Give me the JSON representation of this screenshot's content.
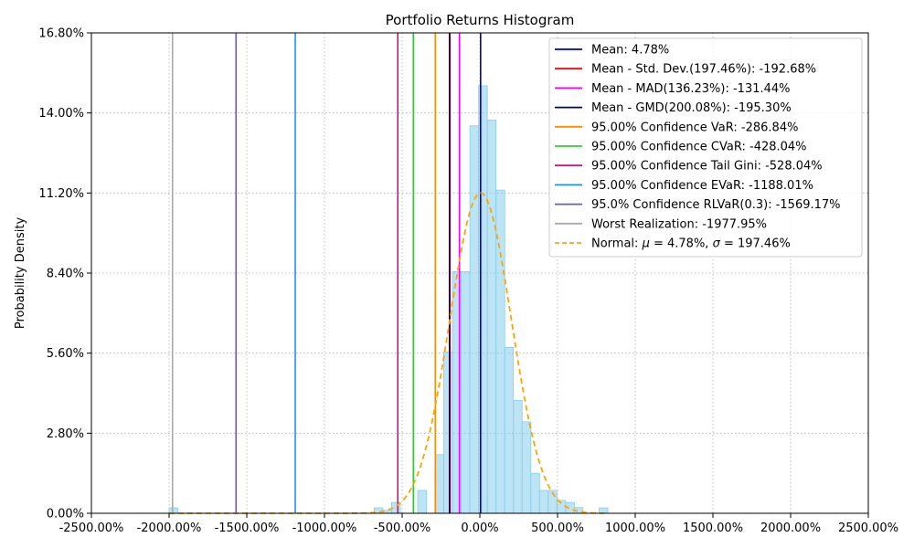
{
  "chart_data": {
    "type": "bar",
    "title": "Portfolio Returns Histogram",
    "xlabel": "",
    "ylabel": "Probability Density",
    "xlim": [
      -2500,
      2500
    ],
    "ylim": [
      0,
      16.8
    ],
    "grid": true,
    "x_ticks": [
      -2500,
      -2000,
      -1500,
      -1000,
      -500,
      0,
      500,
      1000,
      1500,
      2000,
      2500
    ],
    "x_tick_labels": [
      "-2500.00%",
      "-2000.00%",
      "-1500.00%",
      "-1000.00%",
      "-500.00%",
      "0.00%",
      "500.00%",
      "1000.00%",
      "1500.00%",
      "2000.00%",
      "2500.00%"
    ],
    "y_ticks": [
      0,
      2.8,
      5.6,
      8.4,
      11.2,
      14.0,
      16.8
    ],
    "y_tick_labels": [
      "0.00%",
      "2.80%",
      "5.60%",
      "8.40%",
      "11.20%",
      "14.00%",
      "16.80%"
    ],
    "histogram": {
      "color": "#87ceeb",
      "edge_color": "#87ceeb",
      "bins": [
        {
          "x0": -2000,
          "x1": -1944,
          "value": 0.19
        },
        {
          "x0": -680,
          "x1": -624,
          "value": 0.19
        },
        {
          "x0": -624,
          "x1": -568,
          "value": 0.1
        },
        {
          "x0": -568,
          "x1": -512,
          "value": 0.38
        },
        {
          "x0": -400,
          "x1": -344,
          "value": 0.8
        },
        {
          "x0": -288,
          "x1": -232,
          "value": 2.05
        },
        {
          "x0": -232,
          "x1": -176,
          "value": 5.65
        },
        {
          "x0": -176,
          "x1": -120,
          "value": 8.45
        },
        {
          "x0": -120,
          "x1": -64,
          "value": 8.45
        },
        {
          "x0": -64,
          "x1": -8,
          "value": 13.55
        },
        {
          "x0": -8,
          "x1": 48,
          "value": 14.95
        },
        {
          "x0": 48,
          "x1": 104,
          "value": 13.75
        },
        {
          "x0": 104,
          "x1": 160,
          "value": 11.3
        },
        {
          "x0": 160,
          "x1": 216,
          "value": 5.8
        },
        {
          "x0": 216,
          "x1": 272,
          "value": 3.95
        },
        {
          "x0": 272,
          "x1": 328,
          "value": 3.2
        },
        {
          "x0": 328,
          "x1": 384,
          "value": 1.4
        },
        {
          "x0": 384,
          "x1": 440,
          "value": 0.8
        },
        {
          "x0": 440,
          "x1": 496,
          "value": 0.8
        },
        {
          "x0": 496,
          "x1": 552,
          "value": 0.45
        },
        {
          "x0": 552,
          "x1": 608,
          "value": 0.38
        },
        {
          "x0": 608,
          "x1": 664,
          "value": 0.2
        },
        {
          "x0": 768,
          "x1": 824,
          "value": 0.19
        }
      ]
    },
    "vlines": [
      {
        "label": "Mean: 4.78%",
        "x": 4.78,
        "color": "#0000cd"
      },
      {
        "label": "Mean - Std. Dev.(197.46%): -192.68%",
        "x": -192.68,
        "color": "#ff0000"
      },
      {
        "label": "Mean - MAD(136.23%): -131.44%",
        "x": -131.44,
        "color": "#ff00ff"
      },
      {
        "label": "Mean - GMD(200.08%): -195.30%",
        "x": -195.3,
        "color": "#000080"
      },
      {
        "label": "95.00% Confidence VaR: -286.84%",
        "x": -286.84,
        "color": "#ff8c00"
      },
      {
        "label": "95.00% Confidence CVaR: -428.04%",
        "x": -428.04,
        "color": "#32cd32"
      },
      {
        "label": "95.00% Confidence Tail Gini: -528.04%",
        "x": -528.04,
        "color": "#c71585"
      },
      {
        "label": "95.00% Confidence EVaR: -1188.01%",
        "x": -1188.01,
        "color": "#1e90ff"
      },
      {
        "label": "95.0% Confidence RLVaR(0.3): -1569.17%",
        "x": -1569.17,
        "color": "#6a5acd"
      },
      {
        "label": "Worst Realization: -1977.95%",
        "x": -1977.95,
        "color": "#a9a9a9"
      }
    ],
    "normal_curve": {
      "label_prefix": "Normal: ",
      "mu_label": "μ",
      "mu_value": "4.78%",
      "sigma_label": "σ",
      "sigma_value": "197.46%",
      "mu": 4.78,
      "sigma": 197.46,
      "peak": 11.2,
      "color": "#ffa500",
      "x_range": [
        -2000,
        800
      ]
    },
    "legend_position": "top-right"
  }
}
